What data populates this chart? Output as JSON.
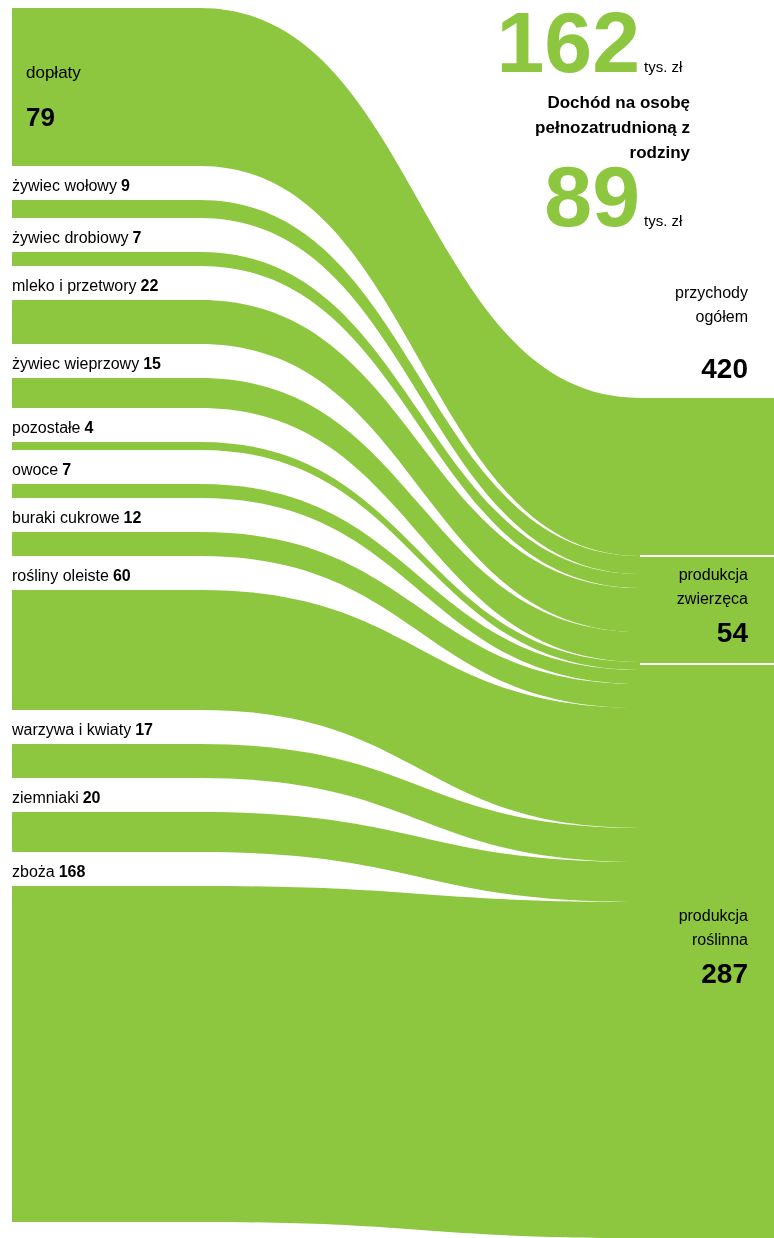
{
  "chart_data": {
    "type": "other",
    "categories": [
      "dopłaty",
      "żywiec wołowy",
      "żywiec drobiowy",
      "mleko i przetwory",
      "żywiec wieprzowy",
      "pozostałe",
      "owoce",
      "buraki cukrowe",
      "rośliny oleiste",
      "warzywa i kwiaty",
      "ziemniaki",
      "zboża"
    ],
    "values": [
      79,
      9,
      7,
      22,
      15,
      4,
      7,
      12,
      60,
      17,
      20,
      168
    ],
    "color": "#8dc63f",
    "data_labels": true,
    "totals": [
      "54",
      "287"
    ],
    "annotations": [
      "162",
      "tys. zł",
      "Dochód na osobę pełnozatrudnioną z rodziny",
      "89",
      "tys. zł",
      "przychody ogółem",
      "420",
      "produkcja zwierzęca",
      "produkcja roślinna"
    ]
  }
}
